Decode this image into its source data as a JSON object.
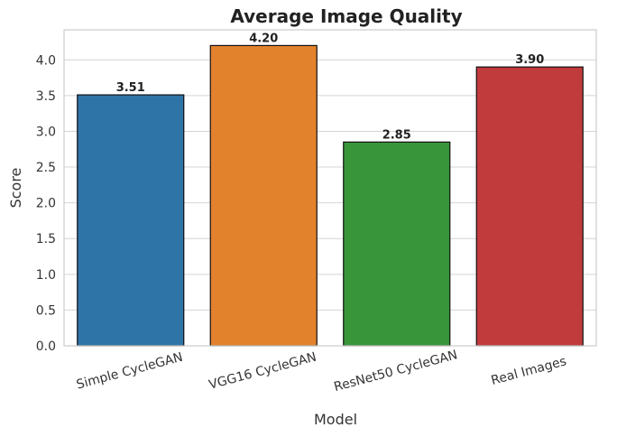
{
  "chart_data": {
    "type": "bar",
    "title": "Average Image Quality",
    "xlabel": "Model",
    "ylabel": "Score",
    "categories": [
      "Simple CycleGAN",
      "VGG16 CycleGAN",
      "ResNet50 CycleGAN",
      "Real Images"
    ],
    "values": [
      3.51,
      4.2,
      2.85,
      3.9
    ],
    "value_labels": [
      "3.51",
      "4.20",
      "2.85",
      "3.90"
    ],
    "colors": [
      "#2f74a6",
      "#e3822d",
      "#39953a",
      "#c13b3d"
    ],
    "ylim": [
      0,
      4.42
    ],
    "yticks": [
      0.0,
      0.5,
      1.0,
      1.5,
      2.0,
      2.5,
      3.0,
      3.5,
      4.0
    ],
    "ytick_labels": [
      "0.0",
      "0.5",
      "1.0",
      "1.5",
      "2.0",
      "2.5",
      "3.0",
      "3.5",
      "4.0"
    ],
    "grid": true,
    "grid_axis": "y"
  }
}
